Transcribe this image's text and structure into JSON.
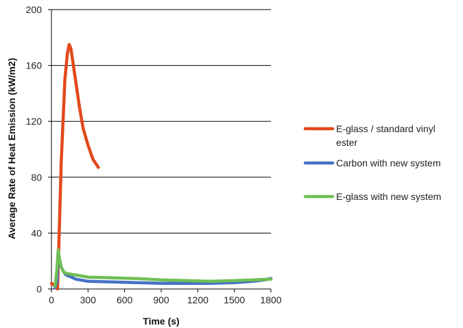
{
  "chart_data": {
    "type": "line",
    "title": "",
    "xlabel": "Time (s)",
    "ylabel": "Average Rate of Heat Emission (kW/m2)",
    "xlim": [
      0,
      1800
    ],
    "ylim": [
      0,
      200
    ],
    "x_ticks": [
      0,
      300,
      600,
      900,
      1200,
      1500,
      1800
    ],
    "y_ticks": [
      0,
      40,
      80,
      120,
      160,
      200
    ],
    "grid": "horizontal",
    "legend_position": "right",
    "series": [
      {
        "name": "E-glass / standard vinyl ester",
        "color": "#E2491A",
        "points": [
          [
            0,
            4
          ],
          [
            20,
            3
          ],
          [
            40,
            1
          ],
          [
            50,
            0
          ],
          [
            55,
            15
          ],
          [
            65,
            45
          ],
          [
            80,
            90
          ],
          [
            95,
            120
          ],
          [
            110,
            150
          ],
          [
            130,
            168
          ],
          [
            145,
            175
          ],
          [
            160,
            172
          ],
          [
            180,
            160
          ],
          [
            200,
            148
          ],
          [
            230,
            130
          ],
          [
            260,
            115
          ],
          [
            300,
            103
          ],
          [
            340,
            93
          ],
          [
            385,
            87
          ]
        ]
      },
      {
        "name": "Carbon with new system",
        "color": "#4472C4",
        "points": [
          [
            30,
            1
          ],
          [
            45,
            5
          ],
          [
            50,
            15
          ],
          [
            60,
            22
          ],
          [
            75,
            17
          ],
          [
            95,
            13
          ],
          [
            120,
            10
          ],
          [
            150,
            9
          ],
          [
            200,
            7
          ],
          [
            300,
            5.5
          ],
          [
            500,
            5
          ],
          [
            700,
            4.5
          ],
          [
            900,
            4
          ],
          [
            1100,
            4
          ],
          [
            1300,
            4
          ],
          [
            1500,
            4.5
          ],
          [
            1650,
            5.5
          ],
          [
            1750,
            6.5
          ],
          [
            1800,
            7.5
          ]
        ]
      },
      {
        "name": "E-glass with new system",
        "color": "#70BF55",
        "points": [
          [
            30,
            2
          ],
          [
            45,
            14
          ],
          [
            55,
            28
          ],
          [
            65,
            22
          ],
          [
            80,
            16
          ],
          [
            100,
            12
          ],
          [
            130,
            11
          ],
          [
            200,
            10
          ],
          [
            300,
            8.5
          ],
          [
            500,
            8
          ],
          [
            700,
            7.5
          ],
          [
            900,
            6.5
          ],
          [
            1100,
            6
          ],
          [
            1300,
            5.5
          ],
          [
            1500,
            6
          ],
          [
            1650,
            6.5
          ],
          [
            1800,
            7
          ]
        ]
      }
    ]
  }
}
